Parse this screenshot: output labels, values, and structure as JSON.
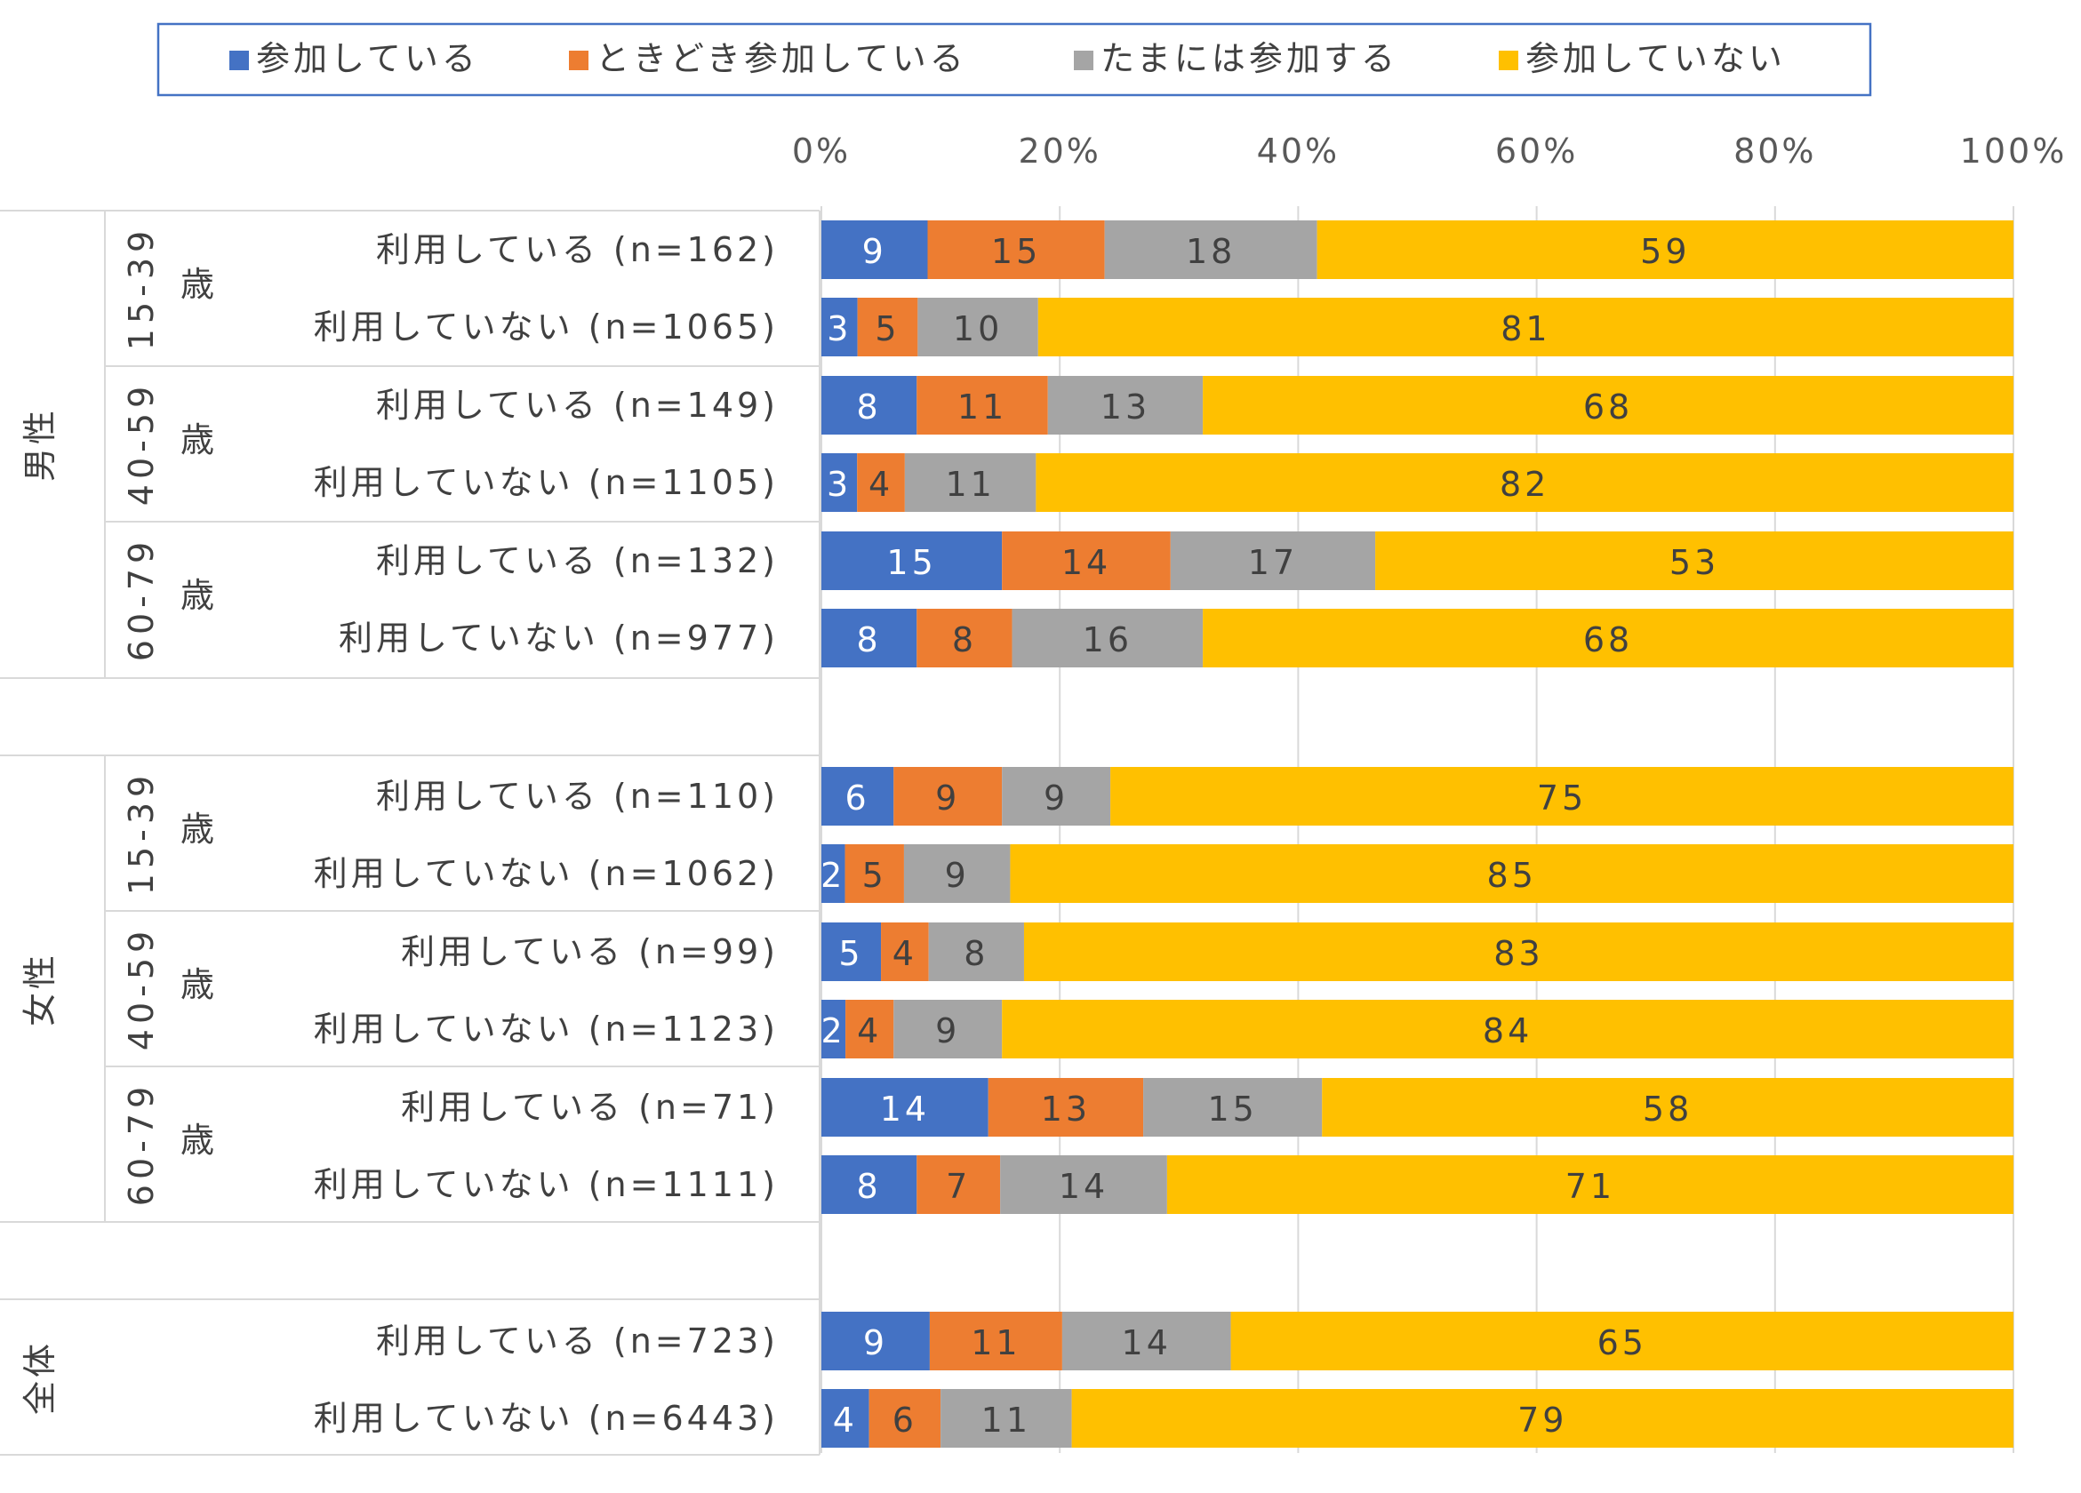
{
  "chart_data": {
    "type": "bar",
    "orientation": "horizontal",
    "stacked": "percent",
    "xlim": [
      0,
      100
    ],
    "x_ticks": [
      "0%",
      "20%",
      "40%",
      "60%",
      "80%",
      "100%"
    ],
    "grid": true,
    "legend_position": "top",
    "series": [
      {
        "name": "参加している",
        "color": "#4472c4"
      },
      {
        "name": "ときどき参加している",
        "color": "#ed7d31"
      },
      {
        "name": "たまには参加する",
        "color": "#a5a5a5"
      },
      {
        "name": "参加していない",
        "color": "#ffc000"
      }
    ],
    "rows": [
      {
        "group": "男性",
        "age": "15-39歳",
        "label": "利用している (n=162)",
        "values": [
          9,
          15,
          18,
          59
        ]
      },
      {
        "group": "男性",
        "age": "15-39歳",
        "label": "利用していない (n=1065)",
        "values": [
          3,
          5,
          10,
          81
        ]
      },
      {
        "group": "男性",
        "age": "40-59歳",
        "label": "利用している (n=149)",
        "values": [
          8,
          11,
          13,
          68
        ]
      },
      {
        "group": "男性",
        "age": "40-59歳",
        "label": "利用していない (n=1105)",
        "values": [
          3,
          4,
          11,
          82
        ]
      },
      {
        "group": "男性",
        "age": "60-79歳",
        "label": "利用している (n=132)",
        "values": [
          15,
          14,
          17,
          53
        ]
      },
      {
        "group": "男性",
        "age": "60-79歳",
        "label": "利用していない (n=977)",
        "values": [
          8,
          8,
          16,
          68
        ]
      },
      {
        "group": "女性",
        "age": "15-39歳",
        "label": "利用している (n=110)",
        "values": [
          6,
          9,
          9,
          75
        ]
      },
      {
        "group": "女性",
        "age": "15-39歳",
        "label": "利用していない (n=1062)",
        "values": [
          2,
          5,
          9,
          85
        ]
      },
      {
        "group": "女性",
        "age": "40-59歳",
        "label": "利用している (n=99)",
        "values": [
          5,
          4,
          8,
          83
        ]
      },
      {
        "group": "女性",
        "age": "40-59歳",
        "label": "利用していない (n=1123)",
        "values": [
          2,
          4,
          9,
          84
        ]
      },
      {
        "group": "女性",
        "age": "60-79歳",
        "label": "利用している (n=71)",
        "values": [
          14,
          13,
          15,
          58
        ]
      },
      {
        "group": "女性",
        "age": "60-79歳",
        "label": "利用していない (n=1111)",
        "values": [
          8,
          7,
          14,
          71
        ]
      },
      {
        "group": "全体",
        "age": "",
        "label": "利用している (n=723)",
        "values": [
          9,
          11,
          14,
          65
        ]
      },
      {
        "group": "全体",
        "age": "",
        "label": "利用していない (n=6443)",
        "values": [
          4,
          6,
          11,
          79
        ]
      }
    ],
    "groups": [
      {
        "name": "男性",
        "ages": [
          {
            "range": "15-39",
            "unit": "歳"
          },
          {
            "range": "40-59",
            "unit": "歳"
          },
          {
            "range": "60-79",
            "unit": "歳"
          }
        ]
      },
      {
        "name": "女性",
        "ages": [
          {
            "range": "15-39",
            "unit": "歳"
          },
          {
            "range": "40-59",
            "unit": "歳"
          },
          {
            "range": "60-79",
            "unit": "歳"
          }
        ]
      },
      {
        "name": "全体",
        "ages": []
      }
    ]
  }
}
